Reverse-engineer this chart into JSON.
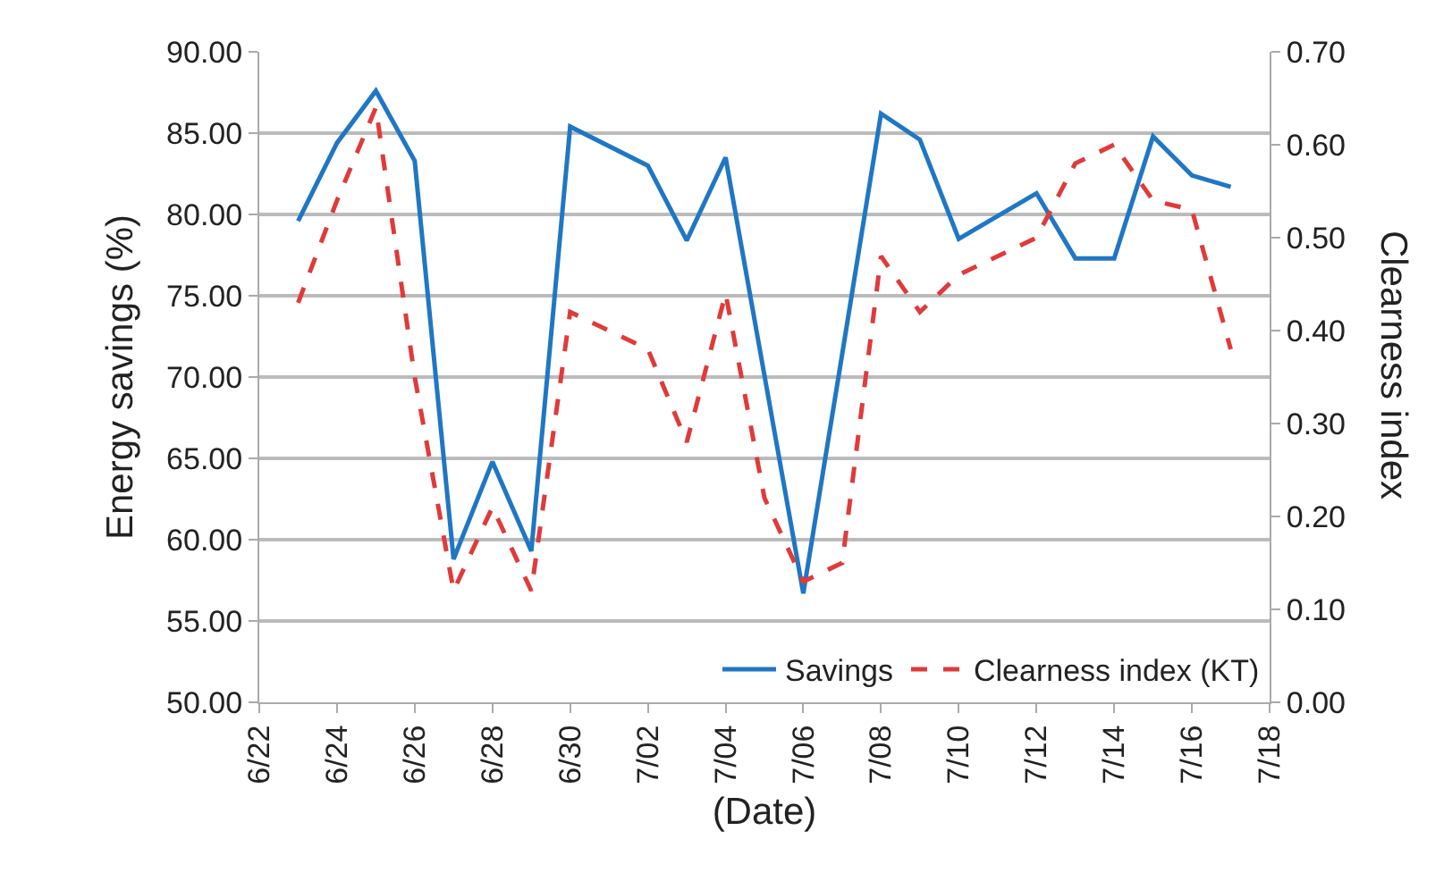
{
  "chart_data": {
    "type": "line",
    "xlabel": "(Date)",
    "ylabel": "Energy savings (%)",
    "y2label": "Clearness index",
    "x": [
      "--06-23",
      "--06-24",
      "--06-25",
      "--06-26",
      "--06-27",
      "--06-28",
      "--06-29",
      "--06-30",
      "--07-02",
      "--07-03",
      "--07-04",
      "--07-05",
      "--07-06",
      "--07-07",
      "--07-08",
      "--07-09",
      "--07-10",
      "--07-12",
      "--07-13",
      "--07-14",
      "--07-15",
      "--07-16",
      "--07-17"
    ],
    "series": [
      {
        "name": "Savings",
        "color": "#1f77c4",
        "line_style": "solid",
        "values": [
          79.6,
          84.4,
          87.6,
          83.3,
          58.8,
          64.8,
          59.3,
          85.4,
          83.0,
          78.4,
          83.5,
          70.1,
          56.7,
          71.4,
          86.2,
          84.6,
          78.5,
          81.3,
          77.3,
          77.3,
          84.8,
          82.4,
          81.7
        ]
      },
      {
        "name": "Clearness index (KT)",
        "color": "#e03a3a",
        "line_style": "dashed",
        "axis": "y2",
        "values": [
          0.43,
          0.54,
          0.64,
          0.35,
          0.12,
          0.21,
          0.12,
          0.42,
          0.38,
          0.28,
          0.44,
          0.22,
          0.13,
          0.15,
          0.48,
          0.42,
          0.46,
          0.5,
          0.58,
          0.6,
          0.54,
          0.53,
          0.38
        ]
      }
    ],
    "xlim": [
      "--06-22",
      "--07-18"
    ],
    "xticks": [
      {
        "value": "--06-22",
        "label": "6/22"
      },
      {
        "value": "--06-24",
        "label": "6/24"
      },
      {
        "value": "--06-26",
        "label": "6/26"
      },
      {
        "value": "--06-28",
        "label": "6/28"
      },
      {
        "value": "--06-30",
        "label": "6/30"
      },
      {
        "value": "--07-02",
        "label": "7/02"
      },
      {
        "value": "--07-04",
        "label": "7/04"
      },
      {
        "value": "--07-06",
        "label": "7/06"
      },
      {
        "value": "--07-08",
        "label": "7/08"
      },
      {
        "value": "--07-10",
        "label": "7/10"
      },
      {
        "value": "--07-12",
        "label": "7/12"
      },
      {
        "value": "--07-14",
        "label": "7/14"
      },
      {
        "value": "--07-16",
        "label": "7/16"
      },
      {
        "value": "--07-18",
        "label": "7/18"
      }
    ],
    "ylim": [
      50,
      90
    ],
    "yticks": [
      {
        "value": 50,
        "label": "50.00"
      },
      {
        "value": 55,
        "label": "55.00"
      },
      {
        "value": 60,
        "label": "60.00"
      },
      {
        "value": 65,
        "label": "65.00"
      },
      {
        "value": 70,
        "label": "70.00"
      },
      {
        "value": 75,
        "label": "75.00"
      },
      {
        "value": 80,
        "label": "80.00"
      },
      {
        "value": 85,
        "label": "85.00"
      },
      {
        "value": 90,
        "label": "90.00"
      }
    ],
    "y2lim": [
      0,
      0.7
    ],
    "y2ticks": [
      {
        "value": 0,
        "label": "0.00"
      },
      {
        "value": 0.1,
        "label": "0.10"
      },
      {
        "value": 0.2,
        "label": "0.20"
      },
      {
        "value": 0.3,
        "label": "0.30"
      },
      {
        "value": 0.4,
        "label": "0.40"
      },
      {
        "value": 0.5,
        "label": "0.50"
      },
      {
        "value": 0.6,
        "label": "0.60"
      },
      {
        "value": 0.7,
        "label": "0.70"
      }
    ],
    "grid": "y",
    "legend": "bottom right",
    "marker": "none"
  }
}
